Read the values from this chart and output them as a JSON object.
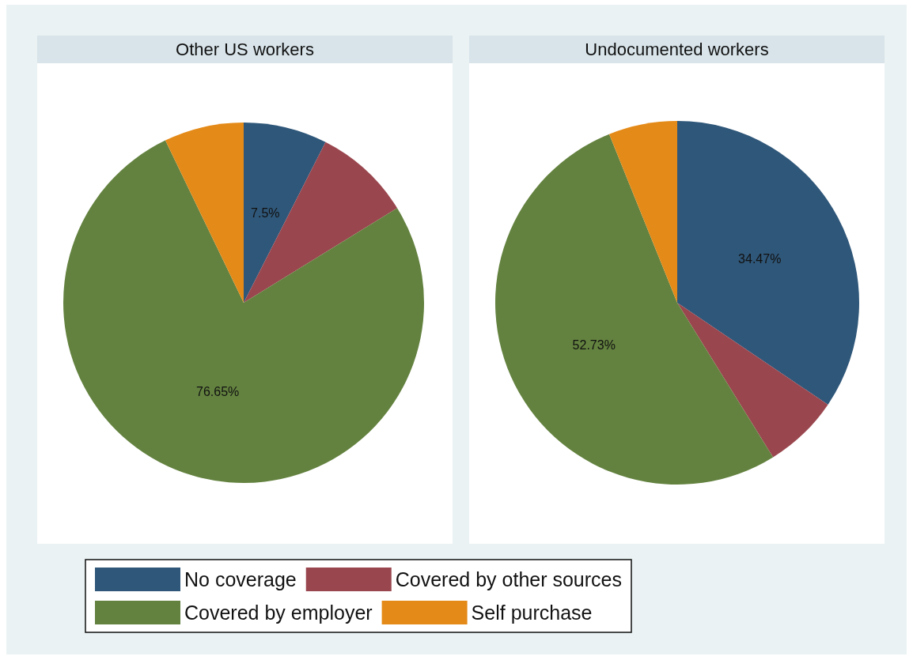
{
  "chart_data": {
    "type": "pie",
    "categories": [
      "No coverage",
      "Covered by other sources",
      "Covered by employer",
      "Self purchase"
    ],
    "colors": [
      "#2f5779",
      "#9a464e",
      "#63823f",
      "#e48a18"
    ],
    "legend": "bottom",
    "series": [
      {
        "name": "Other US workers",
        "values": [
          7.5,
          8.7,
          76.65,
          7.15
        ],
        "value_labels": [
          "7.5%",
          null,
          "76.65%",
          null
        ]
      },
      {
        "name": "Undocumented workers",
        "values": [
          34.47,
          6.7,
          52.73,
          6.1
        ],
        "value_labels": [
          "34.47%",
          null,
          "52.73%",
          null
        ]
      }
    ]
  }
}
